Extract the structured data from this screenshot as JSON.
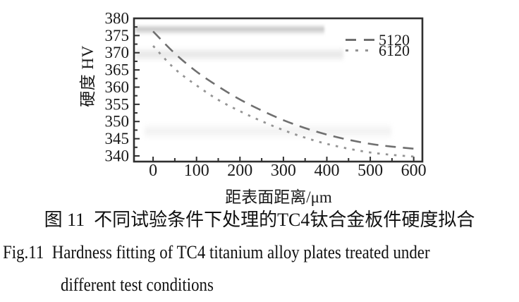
{
  "figure": {
    "caption_cn": "图 11  不同试验条件下处理的TC4钛合金板件硬度拟合",
    "caption_en": {
      "line1": "Fig.11  Hardness fitting of TC4 titanium alloy plates treated under",
      "line2": "different test conditions"
    }
  },
  "colors": {
    "axis": "#2f2f2f",
    "text": "#1a1a1a",
    "series_5120": "#6f6f6f",
    "series_6120": "#949494"
  },
  "chart_data": {
    "type": "line",
    "title": "",
    "xlabel": "距表面距离/μm",
    "ylabel": "硬度 HV",
    "xlim": [
      -44,
      620
    ],
    "ylim": [
      338.35,
      380
    ],
    "x_major_ticks": [
      0,
      100,
      200,
      300,
      400,
      500,
      600
    ],
    "x_minor_step": 50,
    "y_major_ticks": [
      340,
      345,
      350,
      355,
      360,
      365,
      370,
      375,
      380
    ],
    "y_minor_step": 2.5,
    "grid": false,
    "legend_position": "top-right",
    "x": [
      0,
      50,
      100,
      150,
      200,
      250,
      300,
      350,
      400,
      450,
      500,
      550,
      600
    ],
    "series": [
      {
        "name": "5120",
        "line_style": "dashed",
        "color": "#6f6f6f",
        "values": [
          376.2,
          369.8,
          364.5,
          360.2,
          356.4,
          353.2,
          350.4,
          348.1,
          346.2,
          344.7,
          343.5,
          342.7,
          342.1
        ]
      },
      {
        "name": "6120",
        "line_style": "dotted",
        "color": "#949494",
        "values": [
          372.0,
          365.3,
          360.5,
          356.3,
          353.0,
          350.1,
          347.5,
          345.3,
          343.5,
          342.1,
          341.0,
          340.3,
          339.8
        ]
      }
    ]
  }
}
